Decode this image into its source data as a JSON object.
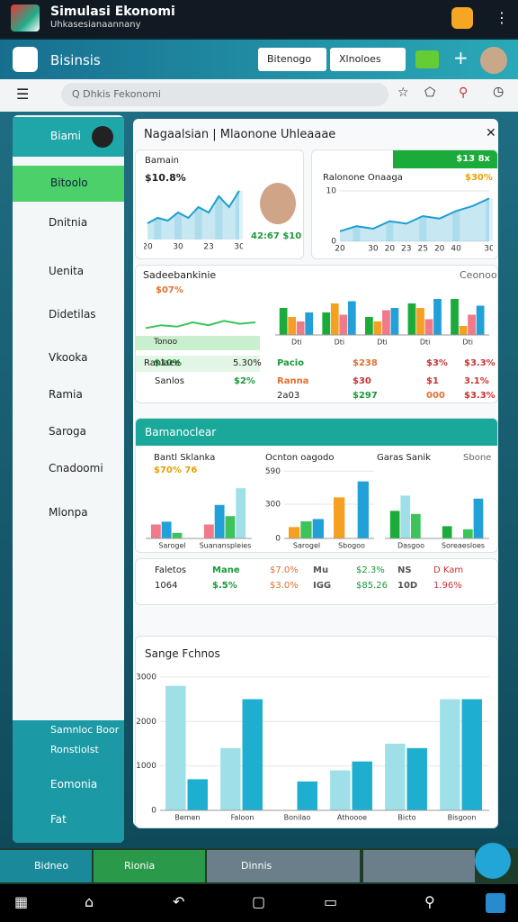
{
  "status": {
    "title": "Simulasi Ekonomi",
    "subtitle": "Uhkasesianaannany"
  },
  "header": {
    "title": "Bisinsis",
    "dropdowns": [
      "Bitenogo",
      "Xlnoloes"
    ]
  },
  "search": {
    "placeholder": "Q Dhkis Fekonomi"
  },
  "sidebar": {
    "items": [
      "Biami",
      "Bitoolo",
      "Dnitnia",
      "Uenita",
      "Didetilas",
      "Vkooka",
      "Ramia",
      "Saroga",
      "Cnadoomi",
      "Mlonpa"
    ],
    "footer": [
      "Samnloc Boor",
      "Ronstiolst",
      "Eomonia",
      "Fat"
    ]
  },
  "panel": {
    "title": "Nagaalsian | Mlaonone Uhleaaae"
  },
  "card1": {
    "label": "Bamain",
    "value": "$10.8%",
    "figure": "42:67 $10",
    "chart": {
      "type": "area",
      "categories": [
        "20",
        null,
        null,
        "30",
        null,
        null,
        "23",
        null,
        null,
        "30"
      ],
      "values": [
        3,
        4,
        3.5,
        5,
        4,
        6,
        5,
        8,
        6,
        9
      ],
      "ylim": [
        0,
        10
      ],
      "color": "#1e9fd0"
    }
  },
  "card2": {
    "badge": "$13 8x",
    "label": "Ralonone Onaaga",
    "value": "$30%",
    "chart": {
      "type": "area",
      "categories": [
        "20",
        null,
        "30",
        "20",
        "23",
        "25",
        "20",
        "40",
        null,
        "30"
      ],
      "values": [
        2,
        3,
        2.5,
        4,
        3.5,
        5,
        4.5,
        6,
        7,
        8.5
      ],
      "ylim": [
        0,
        10
      ],
      "yticks": [
        0,
        10
      ],
      "color": "#1e9fd0"
    }
  },
  "section1": {
    "title": "Sadeebankinie",
    "aside": "Ceonoo",
    "value": "$07%",
    "line": {
      "type": "line",
      "values": [
        3,
        4,
        3.5,
        5,
        4,
        5.5,
        4.5,
        5
      ],
      "ylim": [
        0,
        10
      ],
      "color": "#3cc45a"
    },
    "legend": [
      "Tonoo",
      "$10%",
      "5.30%"
    ],
    "bars": {
      "type": "bar",
      "categories": [
        "Dti",
        "Dti",
        "Dti",
        "Dti",
        "Dti"
      ],
      "ylim": [
        0,
        20
      ],
      "series": [
        {
          "color": "#1aab3a",
          "values": [
            12,
            10,
            8,
            14,
            16
          ]
        },
        {
          "color": "#f5a020",
          "values": [
            8,
            14,
            6,
            12,
            4
          ]
        },
        {
          "color": "#f07a8a",
          "values": [
            6,
            9,
            11,
            7,
            9
          ]
        },
        {
          "color": "#22a0d8",
          "values": [
            10,
            15,
            12,
            16,
            13
          ]
        }
      ]
    },
    "rows": [
      [
        "Ranlaee",
        "Pacio",
        "$238",
        "$3%",
        "$3.3%"
      ],
      [
        "Sanlos",
        "$2%",
        "Ranna",
        "$30",
        "$1",
        "3.1%"
      ],
      [
        "2a03",
        "$297",
        "000",
        "$3.3%"
      ]
    ]
  },
  "section2": {
    "title": "Bamanoclear",
    "blocks": [
      {
        "title": "Bantl Sklanka",
        "value": "$70% 76",
        "chart": {
          "type": "bar",
          "categories": [
            "Sarogel",
            "Suananspleies"
          ],
          "ylim": [
            0,
            10
          ],
          "series": [
            {
              "color": "#f07a8a",
              "values": [
                2.5,
                2.5
              ]
            },
            {
              "color": "#22a0d8",
              "values": [
                3,
                6
              ]
            },
            {
              "color": "#3cc45a",
              "values": [
                1,
                4
              ]
            },
            {
              "color": "#9fe0e8",
              "values": [
                0,
                9
              ]
            }
          ]
        }
      },
      {
        "title": "Ocnton oagodo",
        "chart": {
          "type": "bar",
          "categories": [
            "Sarogel",
            "Sbogoo"
          ],
          "ylim": [
            0,
            600
          ],
          "yticks": [
            0,
            300,
            590
          ],
          "series": [
            {
              "color": "#f5a020",
              "values": [
                100,
                360
              ]
            },
            {
              "color": "#3cc45a",
              "values": [
                150,
                0
              ]
            },
            {
              "color": "#22a0d8",
              "values": [
                170,
                500
              ]
            }
          ]
        }
      },
      {
        "title": "Garas Sanik",
        "aside": "Sbone",
        "chart": {
          "type": "bar",
          "categories": [
            "Dasgoo",
            "Soreaesloes"
          ],
          "ylim": [
            0,
            10
          ],
          "series": [
            {
              "color": "#1aab3a",
              "values": [
                4.5,
                2
              ]
            },
            {
              "color": "#9fe0e8",
              "values": [
                7,
                0
              ]
            },
            {
              "color": "#3cc45a",
              "values": [
                4,
                1.5
              ]
            },
            {
              "color": "#22a0d8",
              "values": [
                0,
                6.5
              ]
            }
          ]
        }
      }
    ]
  },
  "table": {
    "rows": [
      [
        "Faletos",
        "Mane",
        "$7.0%",
        "Mu",
        "$2.3%",
        "NS",
        "D Kam"
      ],
      [
        "1064",
        "$.5%",
        "$3.0%",
        "IGG",
        "$85.26",
        "10D",
        "1.96%"
      ]
    ]
  },
  "bottom_chart": {
    "type": "bar",
    "title": "Sange Fchnos",
    "categories": [
      "Bemen",
      "Faloon",
      "Bonilao",
      "Athoooe",
      "Bicto",
      "Bisgoon"
    ],
    "ylim": [
      0,
      3200
    ],
    "yticks": [
      0,
      1000,
      2000,
      3000
    ],
    "series": [
      {
        "color": "#9fe0e8",
        "values": [
          2800,
          1400,
          0,
          900,
          1500,
          2500
        ]
      },
      {
        "color": "#1eaed0",
        "values": [
          700,
          2500,
          650,
          1100,
          1400,
          2500
        ]
      }
    ]
  },
  "tabs": [
    "Bidneo",
    "Rionia",
    "Dinnis"
  ]
}
